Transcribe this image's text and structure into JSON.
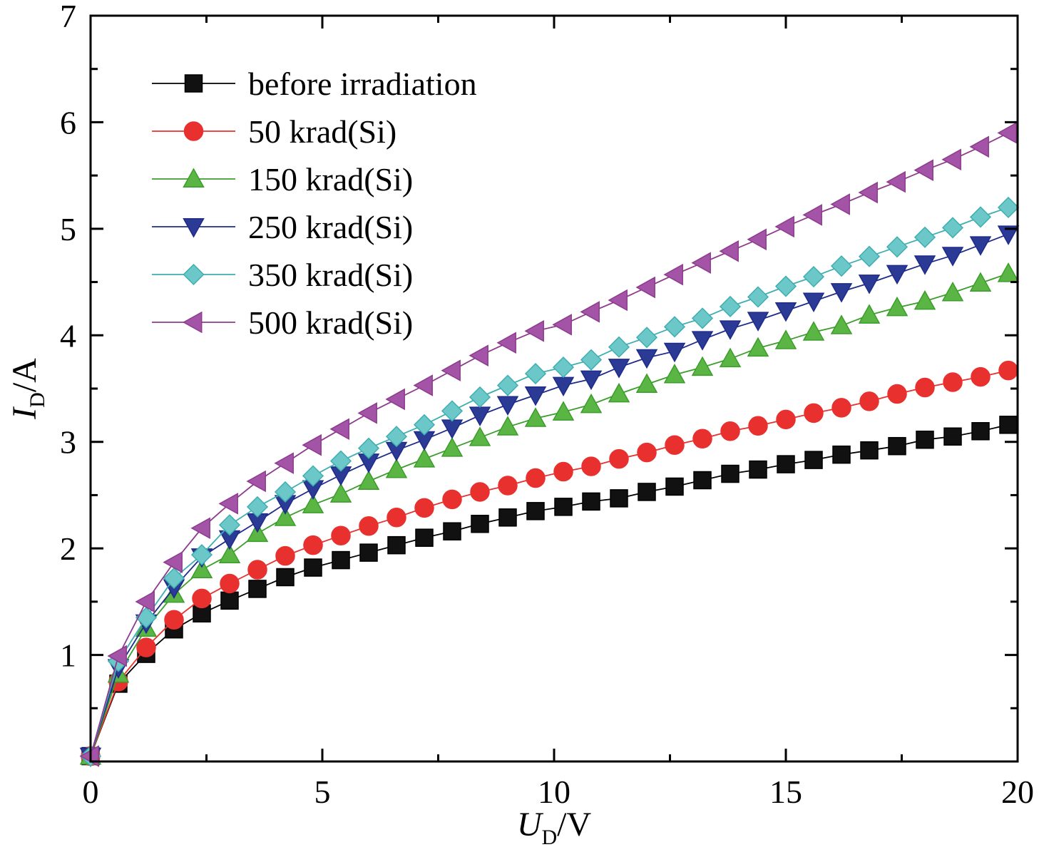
{
  "chart_data": {
    "type": "line",
    "title": "",
    "xlabel": {
      "main": "U",
      "sub": "D",
      "unit": "/V"
    },
    "ylabel": {
      "main": "I",
      "sub": "D",
      "unit": "/A"
    },
    "xlim": [
      0,
      20
    ],
    "ylim": [
      0,
      7
    ],
    "xticks": [
      0,
      5,
      10,
      15,
      20
    ],
    "yticks": [
      1,
      2,
      3,
      4,
      5,
      6,
      7
    ],
    "grid": false,
    "legend_position": "top-left",
    "x": [
      0,
      0.6,
      1.2,
      1.8,
      2.4,
      3.0,
      3.6,
      4.2,
      4.8,
      5.4,
      6.0,
      6.6,
      7.2,
      7.8,
      8.4,
      9.0,
      9.6,
      10.2,
      10.8,
      11.4,
      12.0,
      12.6,
      13.2,
      13.8,
      14.4,
      15.0,
      15.6,
      16.2,
      16.8,
      17.4,
      18.0,
      18.6,
      19.2,
      19.8
    ],
    "series": [
      {
        "name": "before irradiation",
        "marker": "square",
        "color": "#000000",
        "fill": "#111111",
        "values": [
          0.05,
          0.73,
          1.01,
          1.24,
          1.39,
          1.51,
          1.62,
          1.73,
          1.82,
          1.89,
          1.96,
          2.03,
          2.1,
          2.16,
          2.23,
          2.29,
          2.35,
          2.39,
          2.44,
          2.47,
          2.53,
          2.58,
          2.64,
          2.7,
          2.74,
          2.79,
          2.83,
          2.88,
          2.92,
          2.96,
          3.02,
          3.05,
          3.1,
          3.16
        ]
      },
      {
        "name": "50 krad(Si)",
        "marker": "circle",
        "color": "#e8302e",
        "fill": "#e8302e",
        "values": [
          0.05,
          0.75,
          1.07,
          1.33,
          1.53,
          1.67,
          1.8,
          1.93,
          2.03,
          2.12,
          2.21,
          2.29,
          2.38,
          2.46,
          2.53,
          2.59,
          2.66,
          2.72,
          2.77,
          2.84,
          2.9,
          2.97,
          3.03,
          3.1,
          3.15,
          3.21,
          3.27,
          3.32,
          3.38,
          3.45,
          3.51,
          3.56,
          3.61,
          3.67
        ]
      },
      {
        "name": "150 krad(Si)",
        "marker": "triangle-up",
        "color": "#3b9e2a",
        "fill": "#5ab545",
        "values": [
          0.05,
          0.82,
          1.25,
          1.57,
          1.8,
          1.94,
          2.14,
          2.29,
          2.41,
          2.51,
          2.63,
          2.74,
          2.84,
          2.94,
          3.04,
          3.14,
          3.22,
          3.28,
          3.35,
          3.45,
          3.54,
          3.63,
          3.7,
          3.78,
          3.88,
          3.95,
          4.03,
          4.09,
          4.19,
          4.26,
          4.32,
          4.4,
          4.49,
          4.58
        ]
      },
      {
        "name": "250 krad(Si)",
        "marker": "triangle-down",
        "color": "#1e2b8a",
        "fill": "#2b3a94",
        "values": [
          0.05,
          0.88,
          1.3,
          1.63,
          1.92,
          2.09,
          2.25,
          2.42,
          2.56,
          2.69,
          2.81,
          2.92,
          3.02,
          3.13,
          3.25,
          3.35,
          3.44,
          3.53,
          3.59,
          3.7,
          3.79,
          3.85,
          3.96,
          4.06,
          4.14,
          4.23,
          4.32,
          4.41,
          4.49,
          4.58,
          4.67,
          4.75,
          4.85,
          4.95
        ]
      },
      {
        "name": "350 krad(Si)",
        "marker": "diamond",
        "color": "#3eaeb0",
        "fill": "#6cc8c8",
        "values": [
          0.05,
          0.94,
          1.35,
          1.72,
          1.94,
          2.22,
          2.39,
          2.53,
          2.68,
          2.82,
          2.94,
          3.05,
          3.16,
          3.29,
          3.42,
          3.53,
          3.64,
          3.7,
          3.77,
          3.89,
          3.98,
          4.08,
          4.16,
          4.27,
          4.36,
          4.46,
          4.55,
          4.65,
          4.74,
          4.83,
          4.92,
          5.01,
          5.11,
          5.2
        ]
      },
      {
        "name": "500 krad(Si)",
        "marker": "triangle-left",
        "color": "#8e3b8e",
        "fill": "#a354a6",
        "values": [
          0.05,
          0.99,
          1.5,
          1.87,
          2.19,
          2.42,
          2.63,
          2.8,
          2.97,
          3.12,
          3.27,
          3.4,
          3.53,
          3.67,
          3.81,
          3.93,
          4.04,
          4.1,
          4.22,
          4.33,
          4.45,
          4.57,
          4.68,
          4.79,
          4.9,
          5.02,
          5.13,
          5.23,
          5.34,
          5.44,
          5.55,
          5.65,
          5.77,
          5.9
        ]
      }
    ]
  }
}
